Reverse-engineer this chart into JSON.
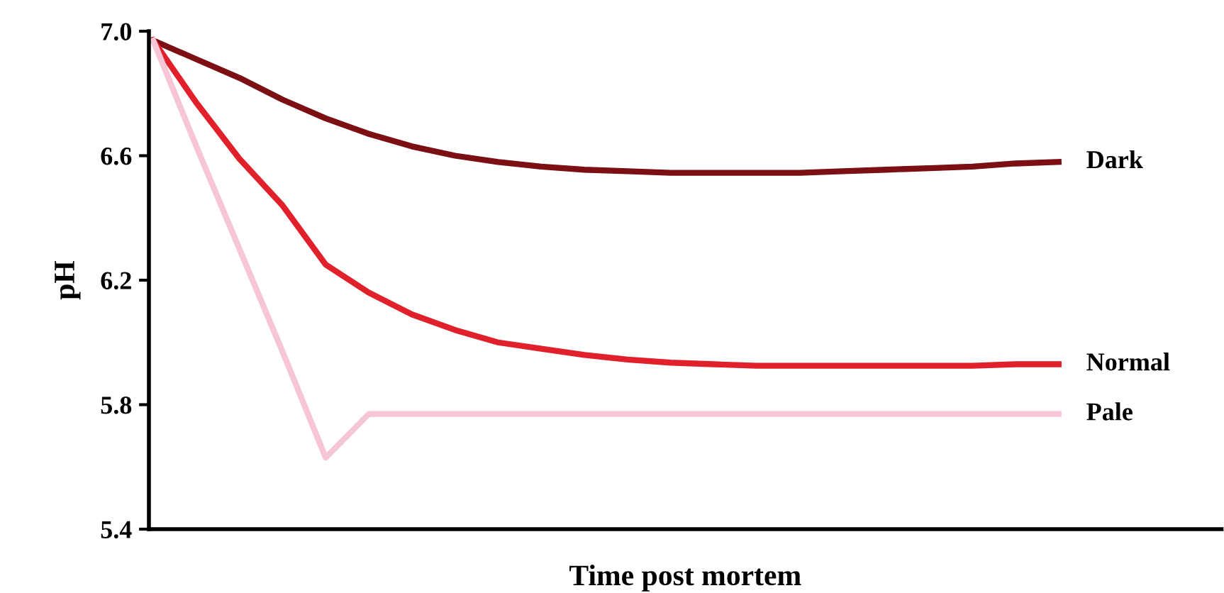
{
  "chart_data": {
    "type": "line",
    "xlabel": "Time post mortem",
    "ylabel": "pH",
    "ylim": [
      5.4,
      7.0
    ],
    "yticks": [
      {
        "value": 5.4,
        "label": "5.4"
      },
      {
        "value": 5.8,
        "label": "5.8"
      },
      {
        "value": 6.2,
        "label": "6.2"
      },
      {
        "value": 6.6,
        "label": "6.6"
      },
      {
        "value": 7.0,
        "label": "7.0"
      }
    ],
    "tick_labels": "y",
    "grid": false,
    "legend": false,
    "marker": "none",
    "line_style": "solid",
    "categories": [
      null,
      null,
      null,
      null,
      null,
      null,
      null,
      null,
      null,
      null,
      null,
      null,
      null,
      null,
      null,
      null,
      null,
      null,
      null,
      null,
      null,
      null
    ],
    "series": [
      {
        "name": "Dark",
        "color": "#7b0f14",
        "values": [
          6.97,
          6.91,
          6.85,
          6.78,
          6.72,
          6.67,
          6.63,
          6.6,
          6.58,
          6.565,
          6.555,
          6.55,
          6.545,
          6.545,
          6.545,
          6.545,
          6.55,
          6.555,
          6.56,
          6.565,
          6.575,
          6.58
        ]
      },
      {
        "name": "Normal",
        "color": "#e0202a",
        "values": [
          6.97,
          6.77,
          6.59,
          6.44,
          6.25,
          6.16,
          6.09,
          6.04,
          6.0,
          5.98,
          5.96,
          5.945,
          5.935,
          5.93,
          5.925,
          5.925,
          5.925,
          5.925,
          5.925,
          5.925,
          5.93,
          5.93
        ]
      },
      {
        "name": "Pale",
        "color": "#f7c6d6",
        "values": [
          6.97,
          6.63,
          6.3,
          5.97,
          5.63,
          5.77,
          5.77,
          5.77,
          5.77,
          5.77,
          5.77,
          5.77,
          5.77,
          5.77,
          5.77,
          5.77,
          5.77,
          5.77,
          5.77,
          5.77,
          5.77,
          5.77
        ]
      }
    ]
  }
}
